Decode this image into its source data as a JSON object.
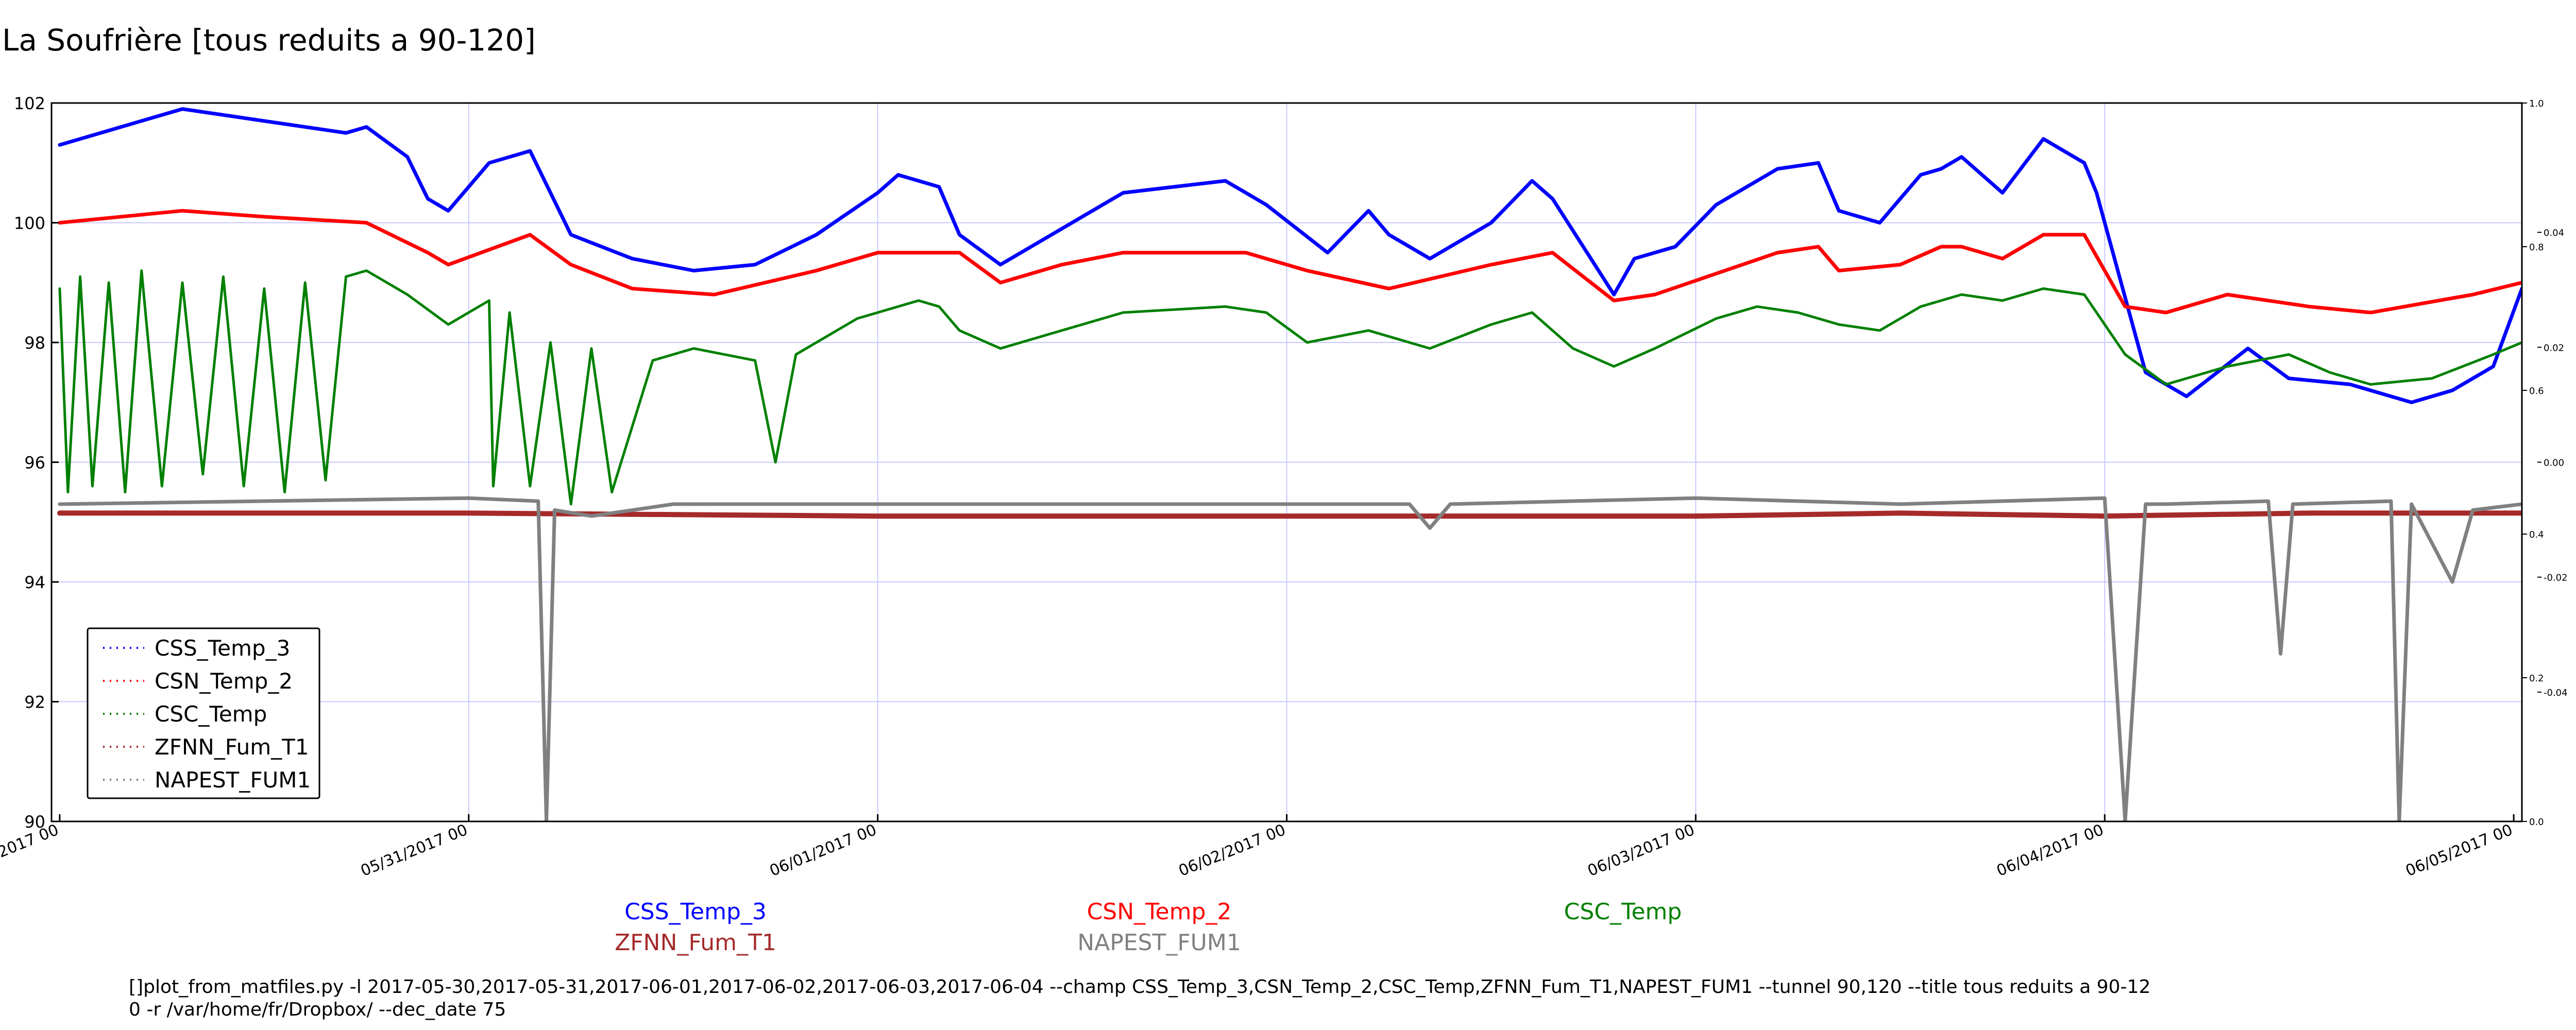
{
  "title": "La Soufrière [tous reduits a 90-120]",
  "command_line": {
    "line1": "[]plot_from_matfiles.py -l 2017-05-30,2017-05-31,2017-06-01,2017-06-02,2017-06-03,2017-06-04 --champ CSS_Temp_3,CSN_Temp_2,CSC_Temp,ZFNN_Fum_T1,NAPEST_FUM1 --tunnel 90,120 --title tous reduits a 90-12",
    "line2": "0 -r /var/home/fr/Dropbox/ --dec_date 75"
  },
  "series_labels": [
    {
      "text": "CSS_Temp_3",
      "color": "#0000ff"
    },
    {
      "text": "CSN_Temp_2",
      "color": "#ff0000"
    },
    {
      "text": "CSC_Temp",
      "color": "#008000"
    },
    {
      "text": "ZFNN_Fum_T1",
      "color": "#a52a2a"
    },
    {
      "text": "NAPEST_FUM1",
      "color": "#808080"
    }
  ],
  "chart_data": {
    "type": "line",
    "title": "La Soufrière [tous reduits a 90-120]",
    "xlabel": "",
    "ylabel": "",
    "x_ticks": [
      "05/30/2017 00",
      "05/31/2017 00",
      "06/01/2017 00",
      "06/02/2017 00",
      "06/03/2017 00",
      "06/04/2017 00",
      "06/05/2017 00"
    ],
    "x_range_days": [
      -0.02,
      6.02
    ],
    "ylim": [
      90,
      102
    ],
    "y_ticks": [
      "90",
      "92",
      "94",
      "96",
      "98",
      "100",
      "102"
    ],
    "right_axis_outer_ticks": [
      "0.0",
      "0.2",
      "0.4",
      "0.6",
      "0.8",
      "1.0"
    ],
    "right_axis_inner_ticks": [
      "-0.04",
      "-0.02",
      "0.00",
      "0.02",
      "0.04"
    ],
    "grid": true,
    "legend_position": "lower-left",
    "legend": [
      "CSS_Temp_3",
      "CSN_Temp_2",
      "CSC_Temp",
      "ZFNN_Fum_T1",
      "NAPEST_FUM1"
    ],
    "series": [
      {
        "name": "CSS_Temp_3",
        "color": "#0000ff",
        "points": [
          [
            0,
            101.3
          ],
          [
            0.1,
            101.5
          ],
          [
            0.3,
            101.9
          ],
          [
            0.5,
            101.7
          ],
          [
            0.7,
            101.5
          ],
          [
            0.75,
            101.6
          ],
          [
            0.85,
            101.1
          ],
          [
            0.9,
            100.4
          ],
          [
            0.95,
            100.2
          ],
          [
            1.05,
            101.0
          ],
          [
            1.15,
            101.2
          ],
          [
            1.2,
            100.5
          ],
          [
            1.25,
            99.8
          ],
          [
            1.4,
            99.4
          ],
          [
            1.55,
            99.2
          ],
          [
            1.7,
            99.3
          ],
          [
            1.85,
            99.8
          ],
          [
            2.0,
            100.5
          ],
          [
            2.05,
            100.8
          ],
          [
            2.15,
            100.6
          ],
          [
            2.2,
            99.8
          ],
          [
            2.3,
            99.3
          ],
          [
            2.45,
            99.9
          ],
          [
            2.6,
            100.5
          ],
          [
            2.85,
            100.7
          ],
          [
            2.95,
            100.3
          ],
          [
            3.1,
            99.5
          ],
          [
            3.2,
            100.2
          ],
          [
            3.25,
            99.8
          ],
          [
            3.35,
            99.4
          ],
          [
            3.5,
            100.0
          ],
          [
            3.6,
            100.7
          ],
          [
            3.65,
            100.4
          ],
          [
            3.8,
            98.8
          ],
          [
            3.85,
            99.4
          ],
          [
            3.95,
            99.6
          ],
          [
            4.05,
            100.3
          ],
          [
            4.2,
            100.9
          ],
          [
            4.3,
            101.0
          ],
          [
            4.35,
            100.2
          ],
          [
            4.45,
            100.0
          ],
          [
            4.55,
            100.8
          ],
          [
            4.6,
            100.9
          ],
          [
            4.65,
            101.1
          ],
          [
            4.75,
            100.5
          ],
          [
            4.85,
            101.4
          ],
          [
            4.95,
            101.0
          ],
          [
            4.98,
            100.5
          ],
          [
            5.1,
            97.5
          ],
          [
            5.2,
            97.1
          ],
          [
            5.35,
            97.9
          ],
          [
            5.45,
            97.4
          ],
          [
            5.6,
            97.3
          ],
          [
            5.75,
            97.0
          ],
          [
            5.85,
            97.2
          ],
          [
            5.95,
            97.6
          ],
          [
            6.02,
            98.9
          ]
        ]
      },
      {
        "name": "CSN_Temp_2",
        "color": "#ff0000",
        "points": [
          [
            0,
            100.0
          ],
          [
            0.3,
            100.2
          ],
          [
            0.5,
            100.1
          ],
          [
            0.75,
            100.0
          ],
          [
            0.9,
            99.5
          ],
          [
            0.95,
            99.3
          ],
          [
            1.15,
            99.8
          ],
          [
            1.25,
            99.3
          ],
          [
            1.4,
            98.9
          ],
          [
            1.6,
            98.8
          ],
          [
            1.85,
            99.2
          ],
          [
            2.0,
            99.5
          ],
          [
            2.2,
            99.5
          ],
          [
            2.3,
            99.0
          ],
          [
            2.45,
            99.3
          ],
          [
            2.6,
            99.5
          ],
          [
            2.9,
            99.5
          ],
          [
            3.05,
            99.2
          ],
          [
            3.25,
            98.9
          ],
          [
            3.5,
            99.3
          ],
          [
            3.65,
            99.5
          ],
          [
            3.8,
            98.7
          ],
          [
            3.9,
            98.8
          ],
          [
            4.2,
            99.5
          ],
          [
            4.3,
            99.6
          ],
          [
            4.35,
            99.2
          ],
          [
            4.5,
            99.3
          ],
          [
            4.6,
            99.6
          ],
          [
            4.65,
            99.6
          ],
          [
            4.75,
            99.4
          ],
          [
            4.85,
            99.8
          ],
          [
            4.95,
            99.8
          ],
          [
            5.05,
            98.6
          ],
          [
            5.15,
            98.5
          ],
          [
            5.3,
            98.8
          ],
          [
            5.5,
            98.6
          ],
          [
            5.65,
            98.5
          ],
          [
            5.9,
            98.8
          ],
          [
            6.02,
            99.0
          ]
        ]
      },
      {
        "name": "CSC_Temp",
        "color": "#008000",
        "points": [
          [
            0,
            98.9
          ],
          [
            0.02,
            95.5
          ],
          [
            0.05,
            99.1
          ],
          [
            0.08,
            95.6
          ],
          [
            0.12,
            99.0
          ],
          [
            0.16,
            95.5
          ],
          [
            0.2,
            99.2
          ],
          [
            0.25,
            95.6
          ],
          [
            0.3,
            99.0
          ],
          [
            0.35,
            95.8
          ],
          [
            0.4,
            99.1
          ],
          [
            0.45,
            95.6
          ],
          [
            0.5,
            98.9
          ],
          [
            0.55,
            95.5
          ],
          [
            0.6,
            99.0
          ],
          [
            0.65,
            95.7
          ],
          [
            0.7,
            99.1
          ],
          [
            0.75,
            99.2
          ],
          [
            0.85,
            98.8
          ],
          [
            0.95,
            98.3
          ],
          [
            1.05,
            98.7
          ],
          [
            1.06,
            95.6
          ],
          [
            1.1,
            98.5
          ],
          [
            1.15,
            95.6
          ],
          [
            1.2,
            98.0
          ],
          [
            1.25,
            95.3
          ],
          [
            1.3,
            97.9
          ],
          [
            1.35,
            95.5
          ],
          [
            1.45,
            97.7
          ],
          [
            1.55,
            97.9
          ],
          [
            1.7,
            97.7
          ],
          [
            1.75,
            96.0
          ],
          [
            1.8,
            97.8
          ],
          [
            1.95,
            98.4
          ],
          [
            2.1,
            98.7
          ],
          [
            2.15,
            98.6
          ],
          [
            2.2,
            98.2
          ],
          [
            2.3,
            97.9
          ],
          [
            2.45,
            98.2
          ],
          [
            2.6,
            98.5
          ],
          [
            2.85,
            98.6
          ],
          [
            2.95,
            98.5
          ],
          [
            3.05,
            98.0
          ],
          [
            3.2,
            98.2
          ],
          [
            3.35,
            97.9
          ],
          [
            3.5,
            98.3
          ],
          [
            3.6,
            98.5
          ],
          [
            3.7,
            97.9
          ],
          [
            3.8,
            97.6
          ],
          [
            3.9,
            97.9
          ],
          [
            4.05,
            98.4
          ],
          [
            4.15,
            98.6
          ],
          [
            4.25,
            98.5
          ],
          [
            4.35,
            98.3
          ],
          [
            4.45,
            98.2
          ],
          [
            4.55,
            98.6
          ],
          [
            4.65,
            98.8
          ],
          [
            4.75,
            98.7
          ],
          [
            4.85,
            98.9
          ],
          [
            4.95,
            98.8
          ],
          [
            5.05,
            97.8
          ],
          [
            5.15,
            97.3
          ],
          [
            5.3,
            97.6
          ],
          [
            5.45,
            97.8
          ],
          [
            5.55,
            97.5
          ],
          [
            5.65,
            97.3
          ],
          [
            5.8,
            97.4
          ],
          [
            5.95,
            97.8
          ],
          [
            6.02,
            98.0
          ]
        ]
      },
      {
        "name": "ZFNN_Fum_T1",
        "color": "#a52a2a",
        "points": [
          [
            0,
            95.15
          ],
          [
            1.0,
            95.15
          ],
          [
            2.0,
            95.1
          ],
          [
            3.0,
            95.1
          ],
          [
            3.5,
            95.1
          ],
          [
            4.0,
            95.1
          ],
          [
            4.5,
            95.15
          ],
          [
            5.0,
            95.1
          ],
          [
            5.5,
            95.15
          ],
          [
            6.02,
            95.15
          ]
        ]
      },
      {
        "name": "NAPEST_FUM1",
        "color": "#808080",
        "points": [
          [
            0,
            95.3
          ],
          [
            1.0,
            95.4
          ],
          [
            1.17,
            95.35
          ],
          [
            1.19,
            90.0
          ],
          [
            1.21,
            95.2
          ],
          [
            1.3,
            95.1
          ],
          [
            1.5,
            95.3
          ],
          [
            2.0,
            95.3
          ],
          [
            2.5,
            95.3
          ],
          [
            3.0,
            95.3
          ],
          [
            3.3,
            95.3
          ],
          [
            3.35,
            94.9
          ],
          [
            3.4,
            95.3
          ],
          [
            4.0,
            95.4
          ],
          [
            4.5,
            95.3
          ],
          [
            5.0,
            95.4
          ],
          [
            5.05,
            90.0
          ],
          [
            5.1,
            95.3
          ],
          [
            5.15,
            95.3
          ],
          [
            5.4,
            95.35
          ],
          [
            5.43,
            92.8
          ],
          [
            5.46,
            95.3
          ],
          [
            5.7,
            95.35
          ],
          [
            5.72,
            90.0
          ],
          [
            5.75,
            95.3
          ],
          [
            5.85,
            94.0
          ],
          [
            5.9,
            95.2
          ],
          [
            6.02,
            95.3
          ]
        ]
      }
    ]
  }
}
